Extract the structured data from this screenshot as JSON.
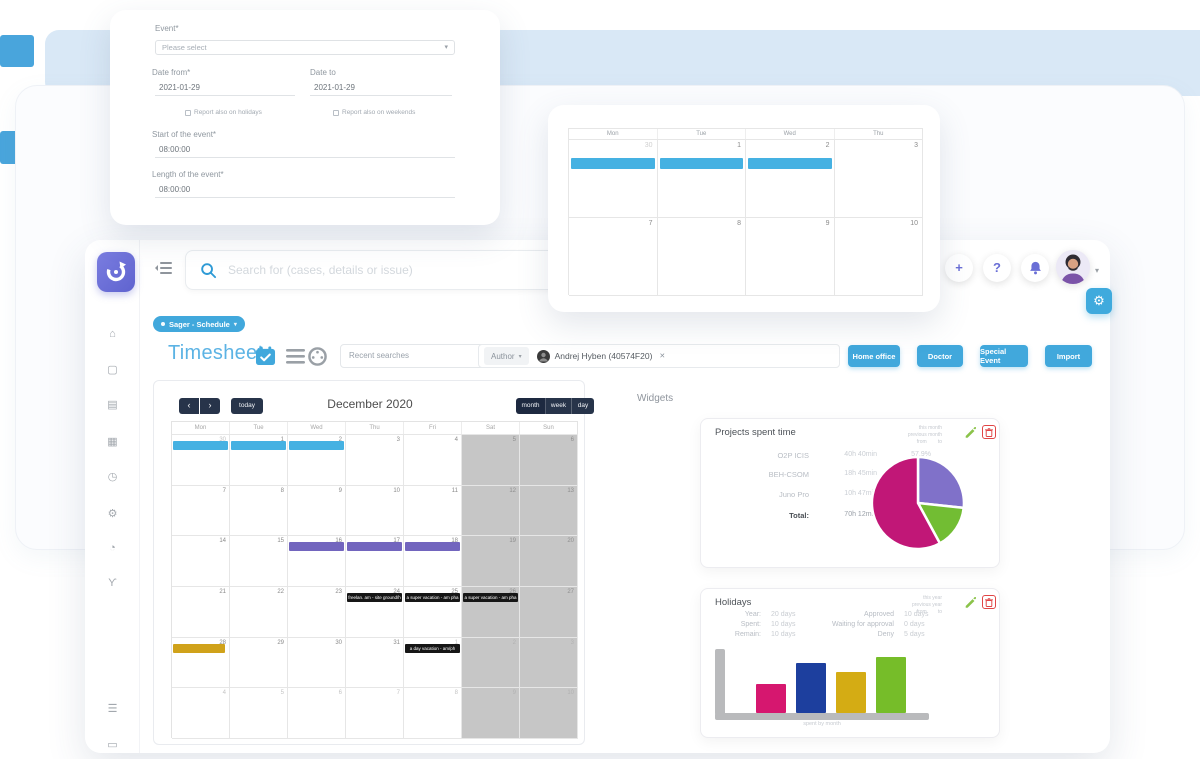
{
  "topbar": {
    "search_placeholder": "Search for (cases, details or issue)",
    "add_label": "+",
    "help_label": "?",
    "caret": "▾"
  },
  "sidebar": {
    "icons": [
      {
        "name": "home-icon",
        "glyph": "⌂"
      },
      {
        "name": "cases-icon",
        "glyph": "▢"
      },
      {
        "name": "list-icon",
        "glyph": "▤"
      },
      {
        "name": "keyboard-icon",
        "glyph": "▦"
      },
      {
        "name": "clock-icon",
        "glyph": "◷"
      },
      {
        "name": "settings-gears-icon",
        "glyph": "⚙"
      },
      {
        "name": "pie-chart-icon",
        "glyph": "◔"
      },
      {
        "name": "branch-icon",
        "glyph": "Ƴ"
      },
      {
        "name": "menu-list-icon",
        "glyph": "☰"
      },
      {
        "name": "id-card-icon",
        "glyph": "▭"
      }
    ]
  },
  "context_pill": {
    "label": "Sager - Schedule",
    "caret": "▾"
  },
  "toolbar": {
    "page_title": "Timesheet",
    "recent_searches_placeholder": "Recent searches",
    "author_chip_label": "Author",
    "author_caret": "▾",
    "author_value": "Andrej Hyben (40574F20)",
    "remove_x": "✕",
    "action_buttons": [
      "Home office",
      "Doctor",
      "Special Event",
      "Import"
    ]
  },
  "event_form": {
    "event_label": "Event*",
    "event_placeholder": "Please select",
    "select_caret": "▾",
    "date_from_label": "Date from*",
    "date_from_value": "2021-01-29",
    "date_to_label": "Date to",
    "date_to_value": "2021-01-29",
    "holidays_checkbox_label": "Report also on holidays",
    "weekends_checkbox_label": "Report also on weekends",
    "start_label": "Start of the event*",
    "start_value": "08:00:00",
    "length_label": "Length of the event*",
    "length_value": "08:00:00"
  },
  "mini_calendar": {
    "day_headers": [
      "Mon",
      "Tue",
      "Wed",
      "Thu"
    ],
    "weeks": [
      [
        {
          "d": "30",
          "muted": true,
          "event": true
        },
        {
          "d": "1",
          "event": true
        },
        {
          "d": "2",
          "event": true
        },
        {
          "d": "3"
        }
      ],
      [
        {
          "d": "7"
        },
        {
          "d": "8"
        },
        {
          "d": "9"
        },
        {
          "d": "10"
        }
      ]
    ]
  },
  "calendar": {
    "prev_label": "‹",
    "next_label": "›",
    "today_label": "today",
    "title": "December 2020",
    "view_buttons": [
      "month",
      "week",
      "day"
    ],
    "day_headers": [
      "Mon",
      "Tue",
      "Wed",
      "Thu",
      "Fri",
      "Sat",
      "Sun"
    ],
    "weeks": [
      [
        {
          "d": "30",
          "muted": true
        },
        {
          "d": "1"
        },
        {
          "d": "2"
        },
        {
          "d": "3"
        },
        {
          "d": "4"
        },
        {
          "d": "5"
        },
        {
          "d": "6"
        }
      ],
      [
        {
          "d": "7"
        },
        {
          "d": "8"
        },
        {
          "d": "9"
        },
        {
          "d": "10"
        },
        {
          "d": "11"
        },
        {
          "d": "12"
        },
        {
          "d": "13"
        }
      ],
      [
        {
          "d": "14"
        },
        {
          "d": "15"
        },
        {
          "d": "16"
        },
        {
          "d": "17"
        },
        {
          "d": "18"
        },
        {
          "d": "19"
        },
        {
          "d": "20"
        }
      ],
      [
        {
          "d": "21"
        },
        {
          "d": "22"
        },
        {
          "d": "23"
        },
        {
          "d": "24"
        },
        {
          "d": "25"
        },
        {
          "d": "26"
        },
        {
          "d": "27"
        }
      ],
      [
        {
          "d": "28"
        },
        {
          "d": "29"
        },
        {
          "d": "30"
        },
        {
          "d": "31"
        },
        {
          "d": "1",
          "muted": true
        },
        {
          "d": "2",
          "muted": true
        },
        {
          "d": "3",
          "muted": true
        }
      ],
      [
        {
          "d": "4",
          "muted": true
        },
        {
          "d": "5",
          "muted": true
        },
        {
          "d": "6",
          "muted": true
        },
        {
          "d": "7",
          "muted": true
        },
        {
          "d": "8",
          "muted": true
        },
        {
          "d": "9",
          "muted": true
        },
        {
          "d": "10",
          "muted": true
        }
      ]
    ],
    "events": [
      {
        "week": 0,
        "col": 0,
        "color": "#45b1e2",
        "label": ""
      },
      {
        "week": 0,
        "col": 1,
        "color": "#45b1e2",
        "label": ""
      },
      {
        "week": 0,
        "col": 2,
        "color": "#45b1e2",
        "label": ""
      },
      {
        "week": 2,
        "col": 2,
        "color": "#7265be",
        "label": ""
      },
      {
        "week": 2,
        "col": 3,
        "color": "#7265be",
        "label": ""
      },
      {
        "week": 2,
        "col": 4,
        "color": "#7265be",
        "label": ""
      },
      {
        "week": 3,
        "col": 3,
        "color": "#161616",
        "label": "freelan. am - site ground/h"
      },
      {
        "week": 3,
        "col": 4,
        "color": "#161616",
        "label": "a super vacation - am pha"
      },
      {
        "week": 3,
        "col": 5,
        "color": "#161616",
        "label": "a super vacation - am pha"
      },
      {
        "week": 4,
        "col": 0,
        "color": "#d0a21a",
        "label": "",
        "width": 0.92
      },
      {
        "week": 4,
        "col": 4,
        "color": "#161616",
        "label": "a day vacation - am/ph"
      }
    ]
  },
  "widgets": {
    "section_title": "Widgets",
    "projects": {
      "title": "Projects spent time",
      "period_lines": [
        "this month",
        "previous month"
      ],
      "from_label": "from",
      "to_label": "to",
      "rows": [
        {
          "label": "O2P ICIS",
          "time": "40h 40min",
          "pct": "57.9%"
        },
        {
          "label": "BEH-CSOM",
          "time": "18h 45min",
          "pct": "26.7%"
        },
        {
          "label": "Juno Pro",
          "time": "10h 47min",
          "pct": "15.4%"
        }
      ],
      "total_label": "Total:",
      "total_time": "70h 12min",
      "total_pct": "100%",
      "pie": {
        "type": "pie",
        "slices": [
          {
            "name": "BEH-CSOM",
            "value": 26.7,
            "color": "#8071c9"
          },
          {
            "name": "Juno Pro",
            "value": 15.4,
            "color": "#72bd33"
          },
          {
            "name": "O2P ICIS",
            "value": 57.9,
            "color": "#c11777"
          }
        ]
      }
    },
    "holidays": {
      "title": "Holidays",
      "period_lines": [
        "this year",
        "previous year"
      ],
      "from_label": "from",
      "to_label": "to",
      "left_stats": [
        {
          "label": "Year:",
          "value": "20 days"
        },
        {
          "label": "Spent:",
          "value": "10 days"
        },
        {
          "label": "Remain:",
          "value": "10 days"
        }
      ],
      "right_stats": [
        {
          "label": "Approved",
          "value": "10 days"
        },
        {
          "label": "Waiting for approval",
          "value": "0 days"
        },
        {
          "label": "Deny",
          "value": "5 days"
        }
      ],
      "bars": {
        "type": "bar",
        "values": [
          2.1,
          3.6,
          2.9,
          4.0
        ],
        "colors": [
          "#d6176f",
          "#1d3f9e",
          "#d4ac14",
          "#76bd29"
        ]
      },
      "caption": "spent by month"
    }
  },
  "gear_glyph": "⚙"
}
